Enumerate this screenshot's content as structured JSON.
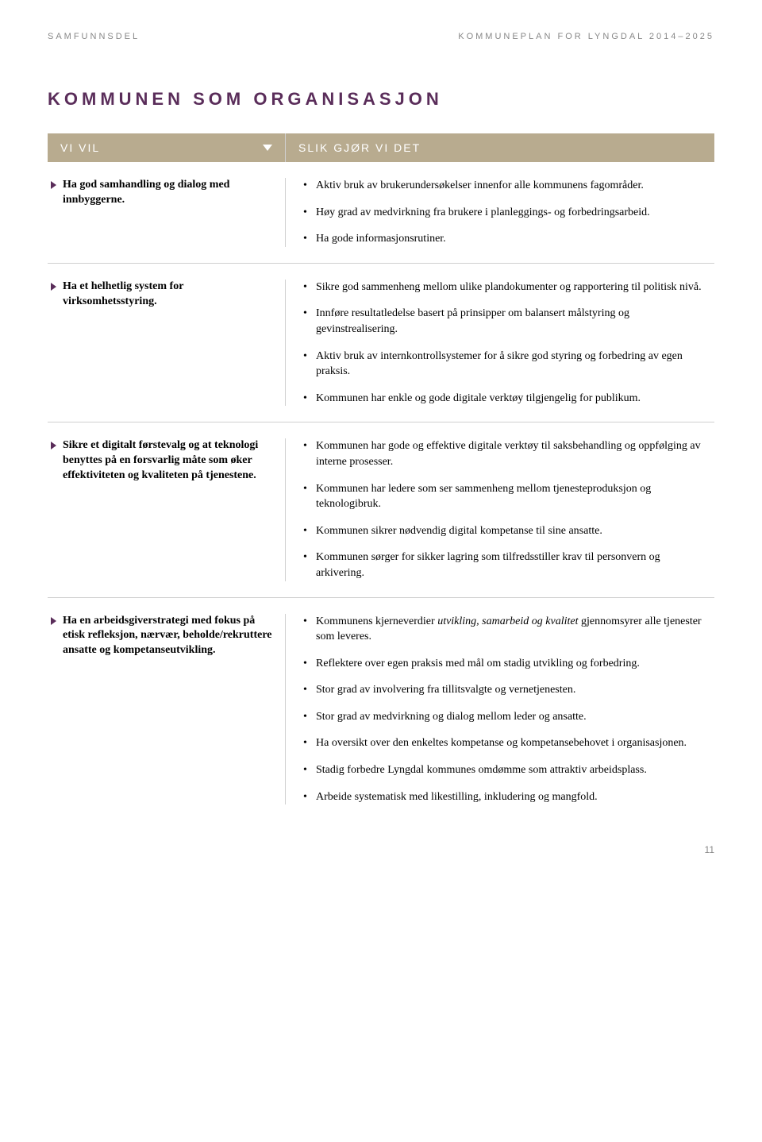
{
  "header": {
    "left": "SAMFUNNSDEL",
    "right": "KOMMUNEPLAN FOR LYNGDAL 2014–2025"
  },
  "section_title": "KOMMUNEN SOM ORGANISASJON",
  "table_header": {
    "left": "VI VIL",
    "right": "SLIK GJØR VI DET"
  },
  "rows": [
    {
      "goal": "Ha god samhandling og dialog med innbyggerne.",
      "actions": [
        "Aktiv bruk av brukerundersøkelser innenfor alle kommunens fagområder.",
        "Høy grad av medvirkning fra brukere i planleggings- og forbedringsarbeid.",
        "Ha gode informasjonsrutiner."
      ]
    },
    {
      "goal": "Ha et helhetlig system for virksomhetsstyring.",
      "actions": [
        "Sikre god sammenheng mellom ulike plandokumenter og rapportering til politisk nivå.",
        "Innføre resultatledelse basert på prinsipper om balansert målstyring og gevinstrealisering.",
        "Aktiv bruk av internkontrollsystemer for å sikre god styring og forbedring av egen praksis.",
        "Kommunen har enkle og gode digitale verktøy tilgjengelig for publikum."
      ]
    },
    {
      "goal": "Sikre et digitalt førstevalg og at teknologi benyttes på en forsvarlig måte som øker effektiviteten og kvaliteten på tjenestene.",
      "actions": [
        "Kommunen har gode og effektive digitale verktøy til saksbehandling og oppfølging av interne prosesser.",
        "Kommunen har ledere som ser sammenheng mellom tjenesteproduksjon og teknologibruk.",
        "Kommunen sikrer nødvendig digital kompetanse til sine ansatte.",
        "Kommunen sørger for sikker lagring som tilfredsstiller krav til personvern og arkivering."
      ]
    },
    {
      "goal": "Ha en arbeidsgiverstrategi med fokus på etisk refleksjon, nærvær, beholde/rekruttere ansatte og kompetanseutvikling.",
      "actions_html": [
        "Kommunens kjerneverdier <span class=\"italic\">utvikling, samarbeid og kvalitet</span> gjennomsyrer alle tjenester som leveres.",
        "Reflektere over egen praksis med mål om stadig utvikling og forbedring.",
        "Stor grad av involvering fra tillitsvalgte og vernetjenesten.",
        "Stor grad av medvirkning og dialog mellom leder og ansatte.",
        "Ha oversikt over den enkeltes kompetanse og kompetansebehovet i organisasjonen.",
        "Stadig forbedre Lyngdal kommunes omdømme som attraktiv arbeidsplass.",
        "Arbeide systematisk med likestilling, inkludering og mangfold."
      ]
    }
  ],
  "page_number": "11"
}
